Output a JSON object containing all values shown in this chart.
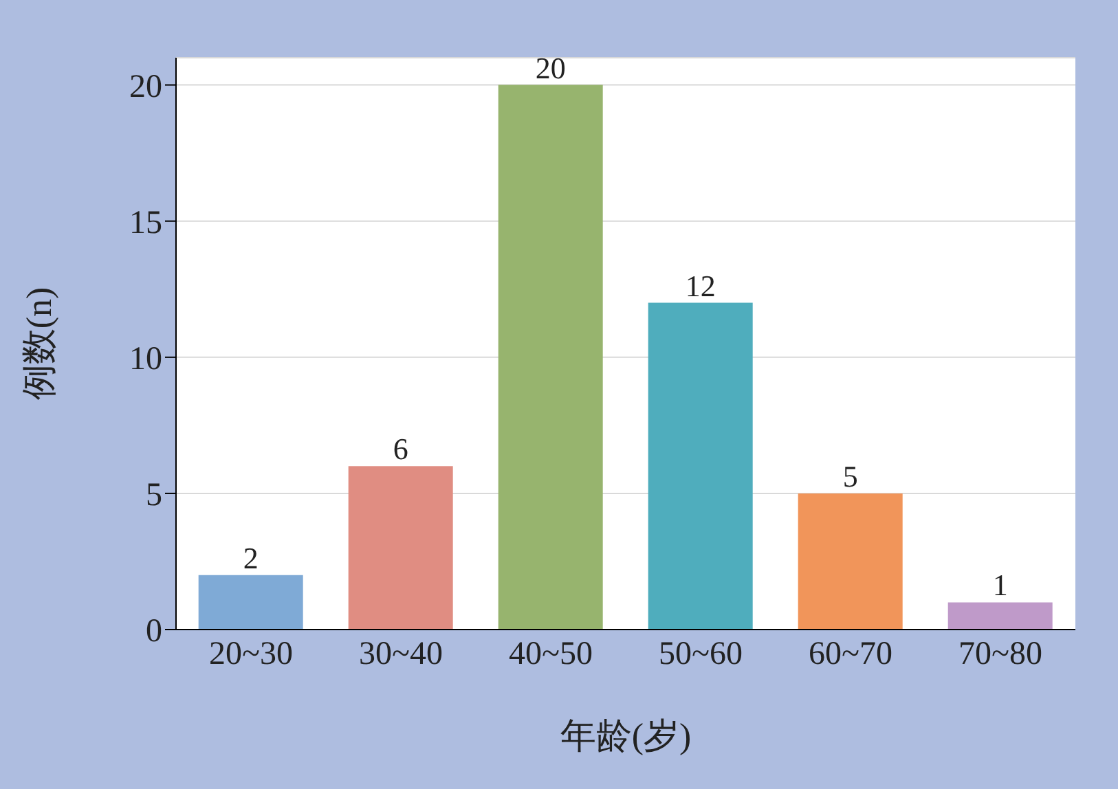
{
  "chart_data": {
    "type": "bar",
    "xlabel": "年龄(岁)",
    "ylabel": "例数(n)",
    "categories": [
      "20~30",
      "30~40",
      "40~50",
      "50~60",
      "60~70",
      "70~80"
    ],
    "values": [
      2,
      6,
      20,
      12,
      5,
      1
    ],
    "colors": [
      "#7faad6",
      "#e08d82",
      "#97b46e",
      "#4fadbd",
      "#f1955a",
      "#bf9ac9"
    ],
    "ylim": [
      0,
      21
    ],
    "yticks": [
      0,
      5,
      10,
      15,
      20
    ],
    "grid": "y",
    "data_labels": true
  }
}
